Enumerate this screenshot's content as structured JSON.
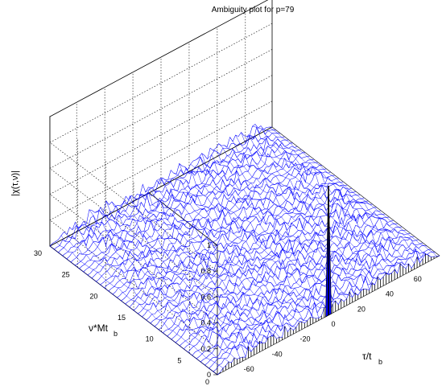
{
  "chart_data": {
    "type": "surface",
    "title": "Ambiguity plot for p=79",
    "zlabel": "|χ(τ,ν)|",
    "xlabel_main": "τ/t",
    "xlabel_sub": "b",
    "ylabel_main": "ν*Mt",
    "ylabel_sub": "b",
    "x_axis": {
      "label": "τ/t_b",
      "range": [
        -79,
        79
      ],
      "ticks": [
        -60,
        -40,
        -20,
        0,
        20,
        40,
        60
      ]
    },
    "y_axis": {
      "label": "ν*Mt_b",
      "range": [
        0,
        30
      ],
      "ticks": [
        0,
        5,
        10,
        15,
        20,
        25,
        30
      ]
    },
    "z_axis": {
      "label": "|χ(τ,ν)|",
      "range": [
        0,
        1
      ],
      "ticks": [
        0,
        0.2,
        0.4,
        0.6,
        0.8,
        1
      ]
    },
    "grid": true,
    "mesh_color": "#0000ff",
    "peak": {
      "tau": 0,
      "nu": 0,
      "value": 1.0
    },
    "sidelobe_level_approx": 0.12
  }
}
